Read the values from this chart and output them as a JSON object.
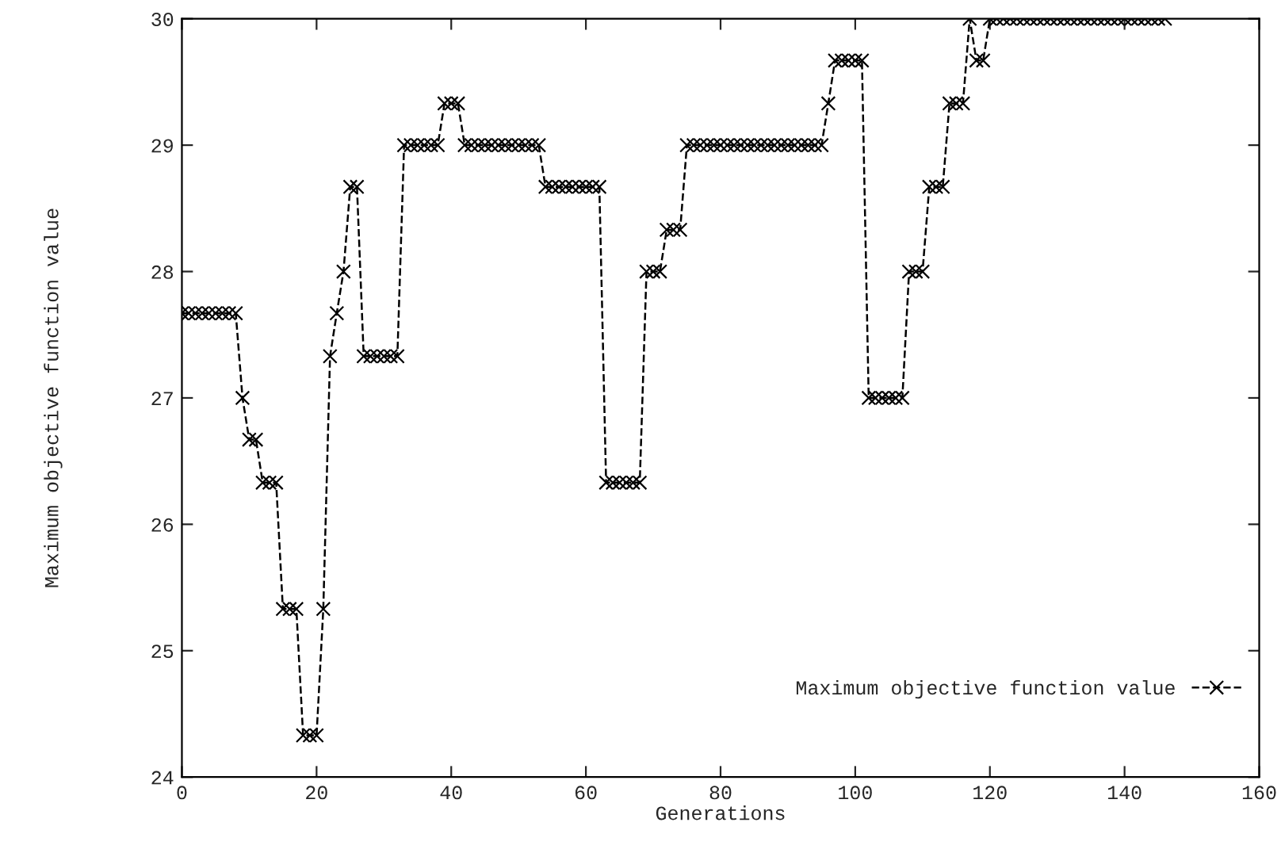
{
  "chart_data": {
    "type": "line",
    "xlabel": "Generations",
    "ylabel": "Maximum objective function value",
    "x": [
      0,
      1,
      2,
      3,
      4,
      5,
      6,
      7,
      8,
      9,
      10,
      11,
      12,
      13,
      14,
      15,
      16,
      17,
      18,
      19,
      20,
      21,
      22,
      23,
      24,
      25,
      26,
      27,
      28,
      29,
      30,
      31,
      32,
      33,
      34,
      35,
      36,
      37,
      38,
      39,
      40,
      41,
      42,
      43,
      44,
      45,
      46,
      47,
      48,
      49,
      50,
      51,
      52,
      53,
      54,
      55,
      56,
      57,
      58,
      59,
      60,
      61,
      62,
      63,
      64,
      65,
      66,
      67,
      68,
      69,
      70,
      71,
      72,
      73,
      74,
      75,
      76,
      77,
      78,
      79,
      80,
      81,
      82,
      83,
      84,
      85,
      86,
      87,
      88,
      89,
      90,
      91,
      92,
      93,
      94,
      95,
      96,
      97,
      98,
      99,
      100,
      101,
      102,
      103,
      104,
      105,
      106,
      107,
      108,
      109,
      110,
      111,
      112,
      113,
      114,
      115,
      116,
      117,
      118,
      119,
      120,
      121,
      122,
      123,
      124,
      125,
      126,
      127,
      128,
      129,
      130,
      131,
      132,
      133,
      134,
      135,
      136,
      137,
      138,
      139,
      140,
      141,
      142,
      143,
      144,
      145,
      146
    ],
    "series": [
      {
        "name": "Maximum objective function value",
        "color": "#000000",
        "values": [
          27.67,
          27.67,
          27.67,
          27.67,
          27.67,
          27.67,
          27.67,
          27.67,
          27.67,
          27.0,
          26.67,
          26.67,
          26.33,
          26.33,
          26.33,
          25.33,
          25.33,
          25.33,
          24.33,
          24.33,
          24.33,
          25.33,
          27.33,
          27.67,
          28.0,
          28.67,
          28.67,
          27.33,
          27.33,
          27.33,
          27.33,
          27.33,
          27.33,
          29.0,
          29.0,
          29.0,
          29.0,
          29.0,
          29.0,
          29.33,
          29.33,
          29.33,
          29.0,
          29.0,
          29.0,
          29.0,
          29.0,
          29.0,
          29.0,
          29.0,
          29.0,
          29.0,
          29.0,
          29.0,
          28.67,
          28.67,
          28.67,
          28.67,
          28.67,
          28.67,
          28.67,
          28.67,
          28.67,
          26.33,
          26.33,
          26.33,
          26.33,
          26.33,
          26.33,
          28.0,
          28.0,
          28.0,
          28.33,
          28.33,
          28.33,
          29.0,
          29.0,
          29.0,
          29.0,
          29.0,
          29.0,
          29.0,
          29.0,
          29.0,
          29.0,
          29.0,
          29.0,
          29.0,
          29.0,
          29.0,
          29.0,
          29.0,
          29.0,
          29.0,
          29.0,
          29.0,
          29.33,
          29.67,
          29.67,
          29.67,
          29.67,
          29.67,
          27.0,
          27.0,
          27.0,
          27.0,
          27.0,
          27.0,
          28.0,
          28.0,
          28.0,
          28.67,
          28.67,
          28.67,
          29.33,
          29.33,
          29.33,
          30.0,
          29.67,
          29.67,
          30.0,
          30.0,
          30.0,
          30.0,
          30.0,
          30.0,
          30.0,
          30.0,
          30.0,
          30.0,
          30.0,
          30.0,
          30.0,
          30.0,
          30.0,
          30.0,
          30.0,
          30.0,
          30.0,
          30.0,
          30.0,
          30.0,
          30.0,
          30.0,
          30.0,
          30.0,
          30.0
        ]
      }
    ],
    "xlim": [
      0,
      160
    ],
    "xticks": [
      0,
      20,
      40,
      60,
      80,
      100,
      120,
      140,
      160
    ],
    "ylim": [
      24,
      30
    ],
    "yticks": [
      24,
      25,
      26,
      27,
      28,
      29,
      30
    ],
    "grid": false,
    "legend": "lower right",
    "marker": "cross",
    "line_style": "dashed"
  }
}
